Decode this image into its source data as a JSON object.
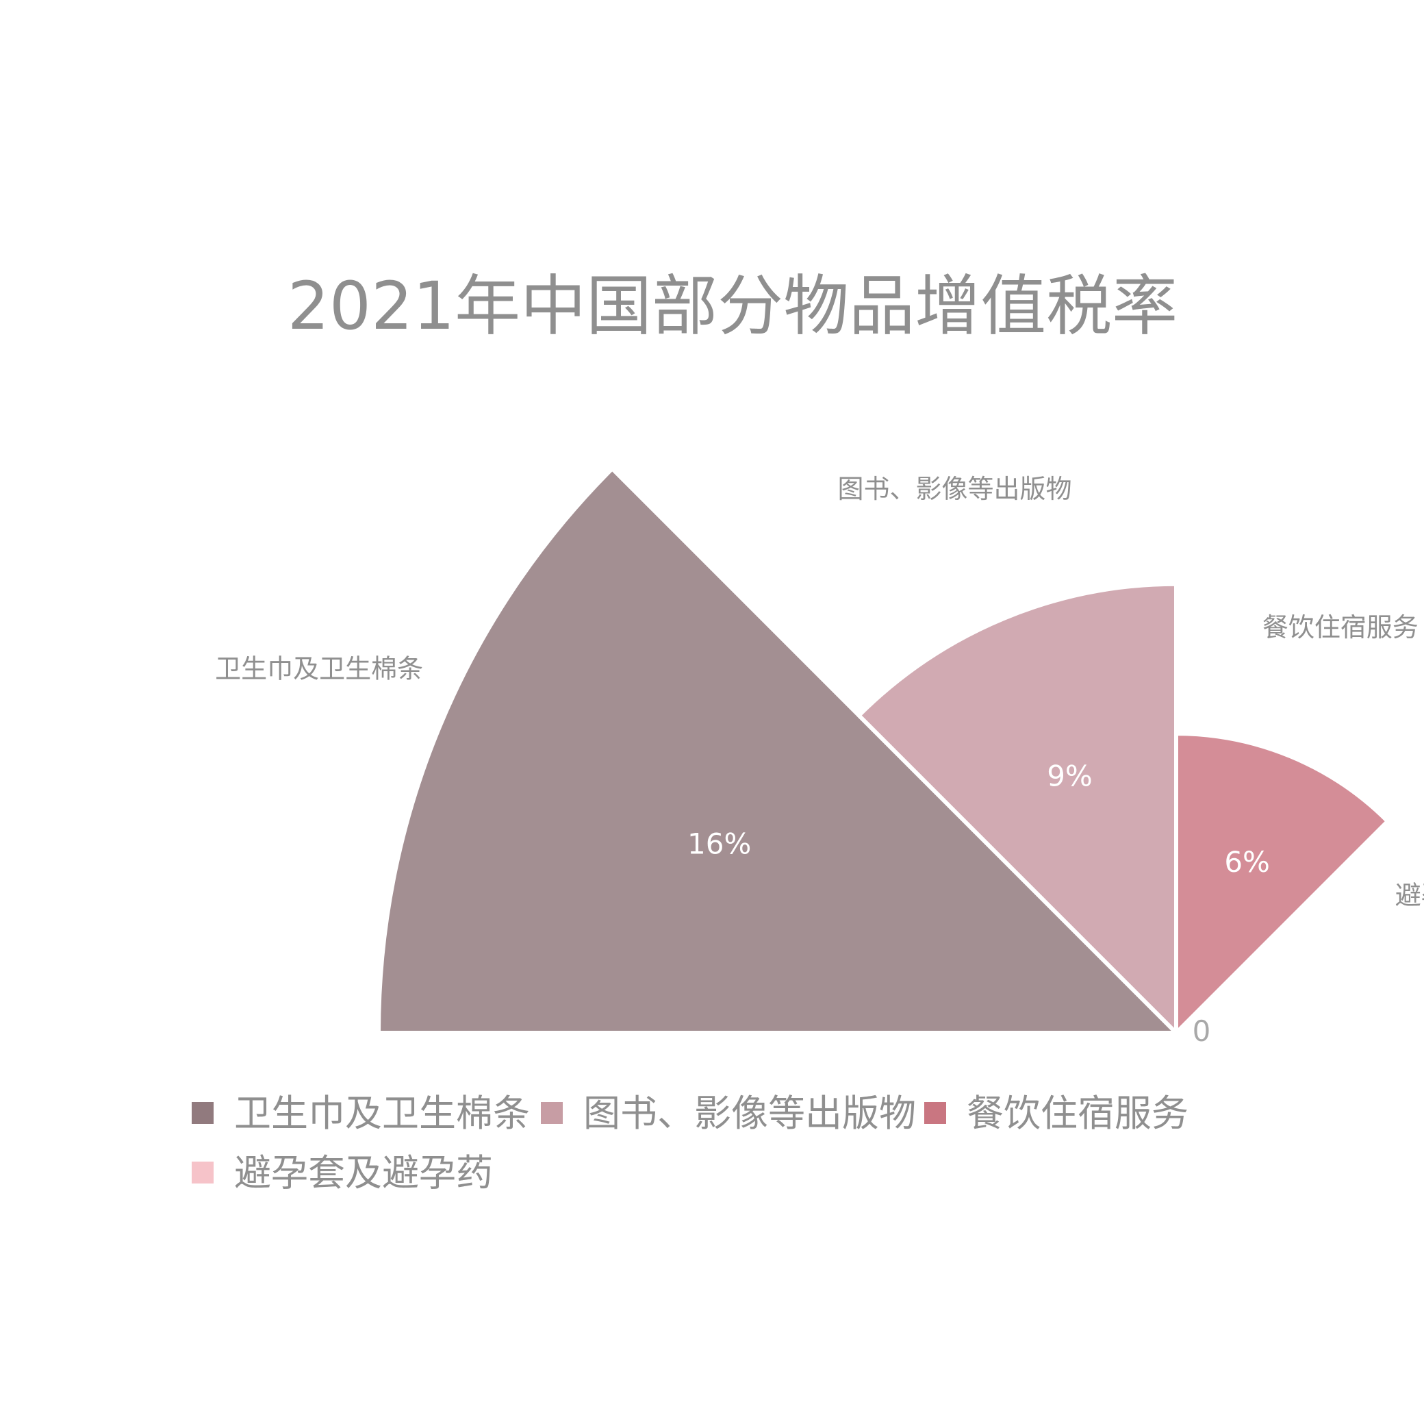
{
  "chart_data": {
    "type": "pie",
    "subtype": "rose",
    "title": "2021年中国部分物品增值税率",
    "categories": [
      "卫生巾及卫生棉条",
      "图书、影像等出版物",
      "餐饮住宿服务",
      "避孕套及避孕药"
    ],
    "values": [
      16,
      9,
      6,
      0
    ],
    "value_labels": [
      "16%",
      "9%",
      "6%",
      ""
    ],
    "radial_axis_label": "0",
    "colors": [
      "#a38f92",
      "#d1aab2",
      "#d48d97",
      "#f5bfc6"
    ],
    "legend_colors": [
      "#917a7e",
      "#c79da4",
      "#c97681",
      "#f6c3c9"
    ],
    "legend": {
      "position": "bottom"
    }
  }
}
